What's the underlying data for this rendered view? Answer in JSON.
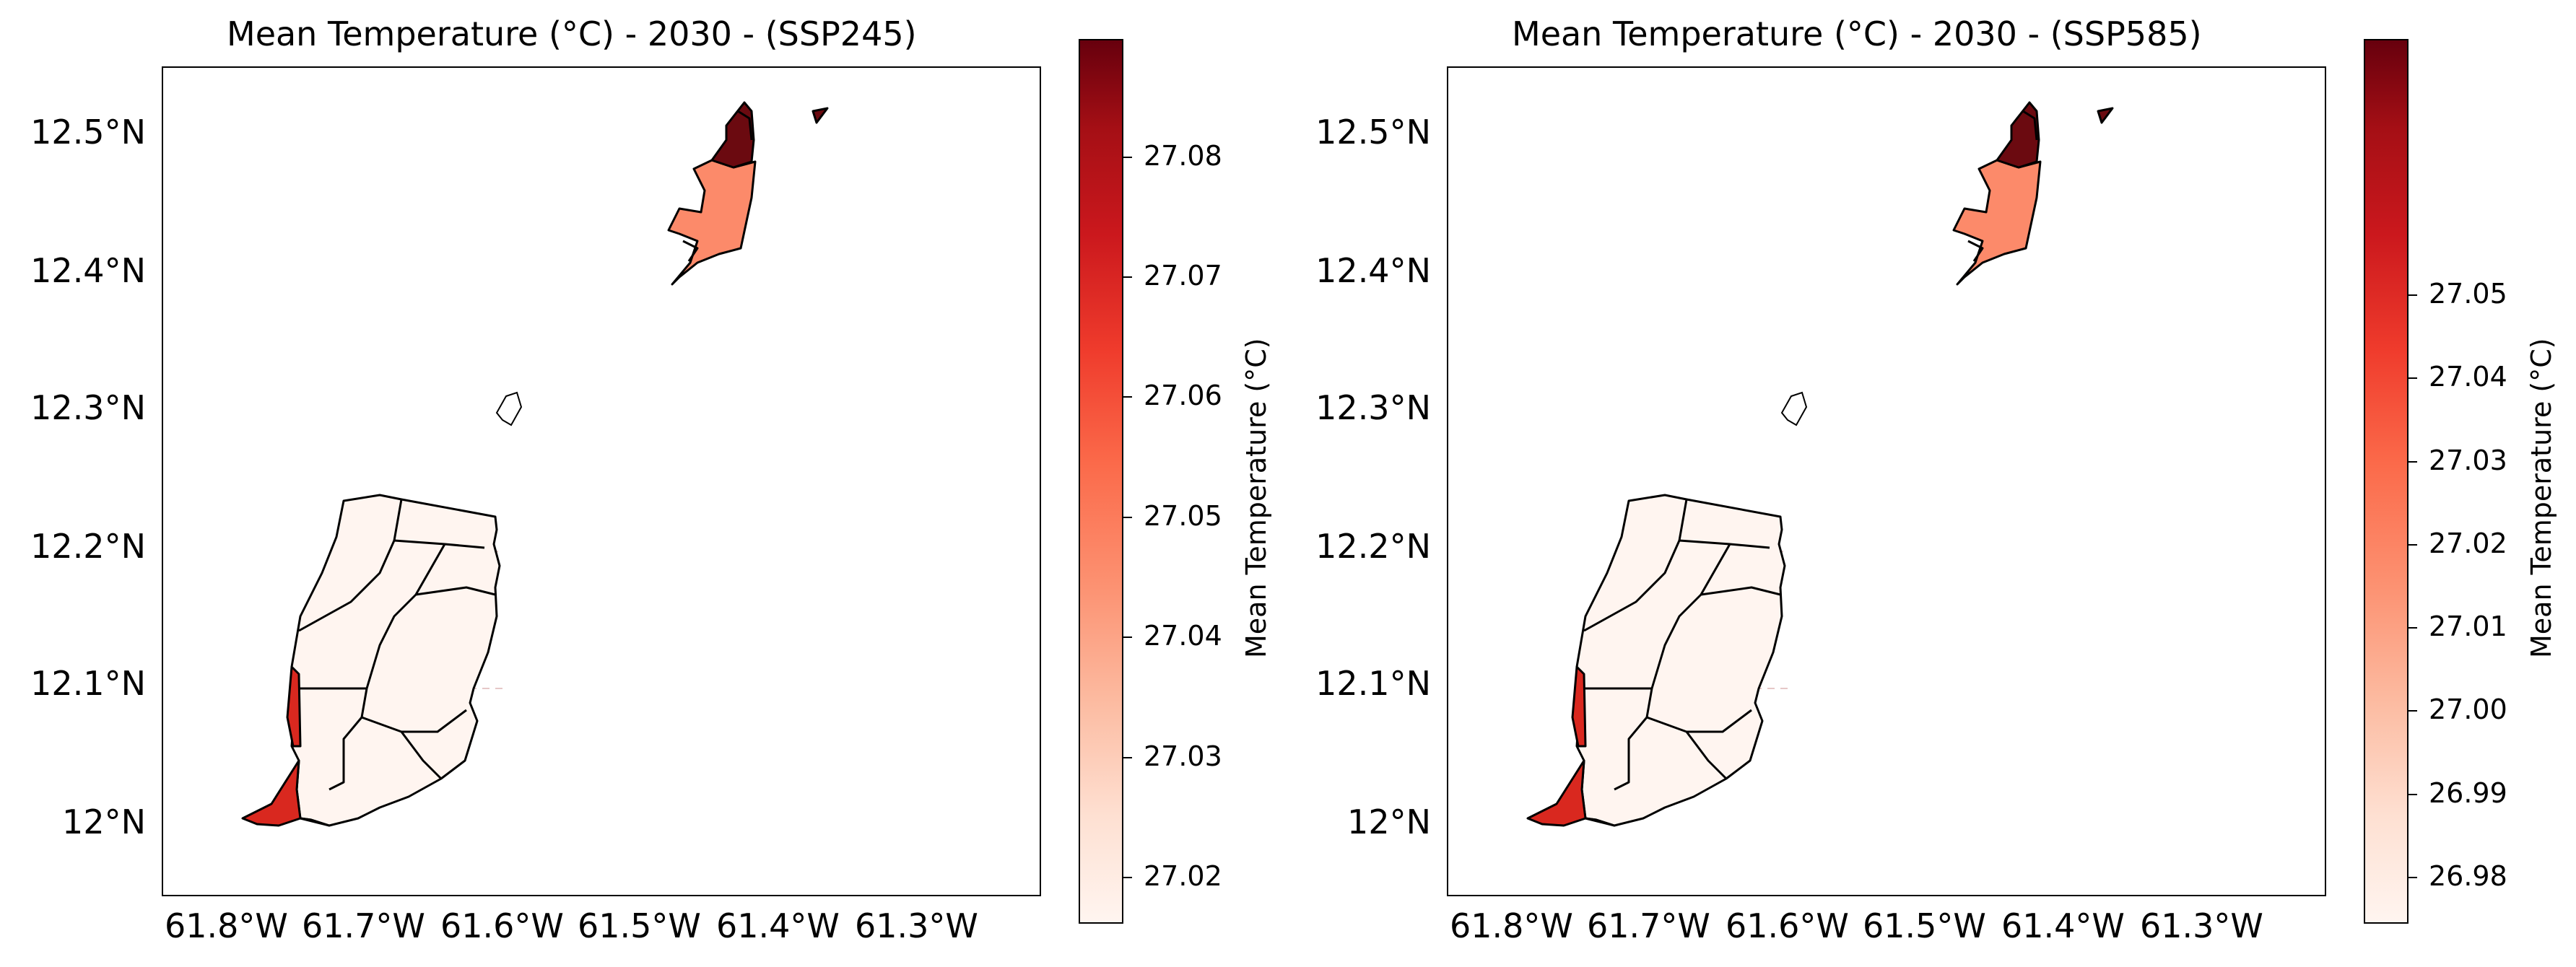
{
  "panels": [
    {
      "title": "Mean Temperature (°C) - 2030 - (SSP245)",
      "lat_ticks": [
        "12.5°N",
        "12.4°N",
        "12.3°N",
        "12.2°N",
        "12.1°N",
        "12°N"
      ],
      "lon_ticks": [
        "61.8°W",
        "61.7°W",
        "61.6°W",
        "61.5°W",
        "61.4°W",
        "61.3°W"
      ],
      "colorbar": {
        "label": "Mean Temperature (°C)",
        "ticks": [
          "27.02",
          "27.03",
          "27.04",
          "27.05",
          "27.06",
          "27.07",
          "27.08"
        ],
        "colormap": "Reds"
      }
    },
    {
      "title": "Mean Temperature (°C) - 2030 - (SSP585)",
      "lat_ticks": [
        "12.5°N",
        "12.4°N",
        "12.3°N",
        "12.2°N",
        "12.1°N",
        "12°N"
      ],
      "lon_ticks": [
        "61.8°W",
        "61.7°W",
        "61.6°W",
        "61.5°W",
        "61.4°W",
        "61.3°W"
      ],
      "colorbar": {
        "label": "Mean Temperature (°C)",
        "ticks": [
          "26.98",
          "26.99",
          "27.00",
          "27.01",
          "27.02",
          "27.03",
          "27.04",
          "27.05"
        ],
        "colormap": "Reds"
      }
    }
  ],
  "colors": {
    "low": "#fff5f0",
    "mid": "#fc8a6a",
    "high": "#d9281f",
    "max": "#6b0a10"
  }
}
